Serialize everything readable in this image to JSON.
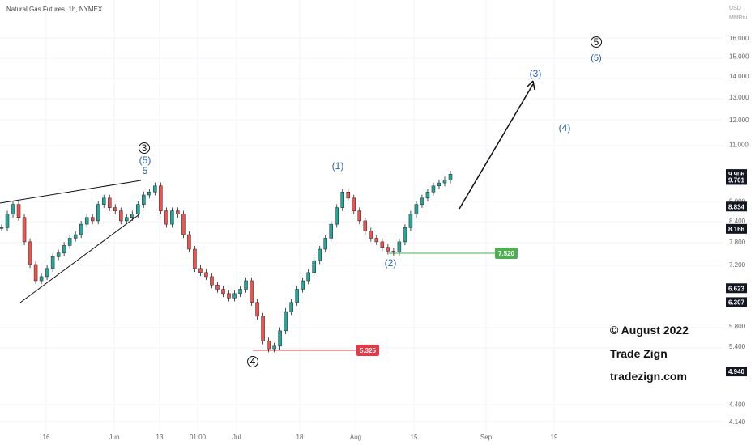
{
  "chart_data": {
    "type": "line",
    "title": "Natural Gas Futures, 1h, NYMEX",
    "y_unit_lines": [
      "USD",
      "MMBtu"
    ],
    "y_scale": "log",
    "ylim": [
      4.14,
      16.0
    ],
    "y_ticks": [
      "16.000",
      "15.000",
      "14.000",
      "13.000",
      "12.000",
      "11.000",
      "9.000",
      "8.400",
      "7.800",
      "7.200",
      "5.800",
      "5.400",
      "4.400",
      "4.140"
    ],
    "x_ticks": [
      "16",
      "Jun",
      "13",
      "01:00",
      "Jul",
      "18",
      "Aug",
      "15",
      "Sep",
      "19"
    ],
    "price_labels": [
      {
        "value": "9.906",
        "style": "dark"
      },
      {
        "value": "9.701",
        "style": "dark"
      },
      {
        "value": "8.834",
        "style": "dark"
      },
      {
        "value": "8.166",
        "style": "dark"
      },
      {
        "value": "6.623",
        "style": "dark"
      },
      {
        "value": "6.307",
        "style": "dark"
      },
      {
        "value": "4.940",
        "style": "dark"
      }
    ],
    "horizontal_levels": [
      {
        "value": "7.520",
        "color": "#4caf50",
        "label": "7.520"
      },
      {
        "value": "5.325",
        "color": "#e53945",
        "label": "5.325"
      }
    ],
    "series": [
      {
        "values": [
          8.2,
          8.6,
          8.9,
          8.5,
          7.8,
          7.2,
          6.8,
          6.9,
          7.1,
          7.4,
          7.5,
          7.7,
          7.9,
          8.0,
          8.3,
          8.5,
          8.4,
          8.9,
          9.1,
          8.8,
          8.7,
          8.4,
          8.5,
          8.6,
          8.9,
          9.2,
          9.3,
          9.5,
          8.7,
          8.3,
          8.7,
          8.6,
          8.0,
          7.6,
          7.1,
          7.0,
          6.9,
          6.7,
          6.6,
          6.5,
          6.4,
          6.5,
          6.6,
          6.8,
          6.3,
          6.0,
          5.5,
          5.35,
          5.4,
          5.7,
          6.1,
          6.3,
          6.6,
          6.8,
          7.0,
          7.3,
          7.6,
          7.9,
          8.3,
          8.8,
          9.3,
          9.1,
          8.7,
          8.4,
          8.1,
          7.9,
          7.8,
          7.65,
          7.55,
          7.52,
          7.8,
          8.2,
          8.6,
          8.9,
          9.1,
          9.3,
          9.5,
          9.6,
          9.7,
          9.9
        ]
      }
    ],
    "annotations": [
      {
        "id": "w3-circled",
        "text": "3",
        "circled": true,
        "color": "black"
      },
      {
        "id": "w5-paren-a",
        "text": "(5)",
        "color": "blue"
      },
      {
        "id": "w5-plain",
        "text": "5",
        "color": "blue"
      },
      {
        "id": "w1-paren",
        "text": "(1)",
        "color": "blue"
      },
      {
        "id": "w2-paren",
        "text": "(2)",
        "color": "blue"
      },
      {
        "id": "w4-circled",
        "text": "4",
        "circled": true,
        "color": "black"
      },
      {
        "id": "w3-paren",
        "text": "(3)",
        "color": "blue"
      },
      {
        "id": "w4-paren",
        "text": "(4)",
        "color": "blue"
      },
      {
        "id": "w5-circled-top",
        "text": "5",
        "circled": true,
        "color": "black"
      },
      {
        "id": "w5-paren-top",
        "text": "(5)",
        "color": "blue"
      }
    ]
  },
  "watermark": {
    "copyright": "© August 2022",
    "brand": "Trade Zign",
    "site": "tradezign.com"
  }
}
